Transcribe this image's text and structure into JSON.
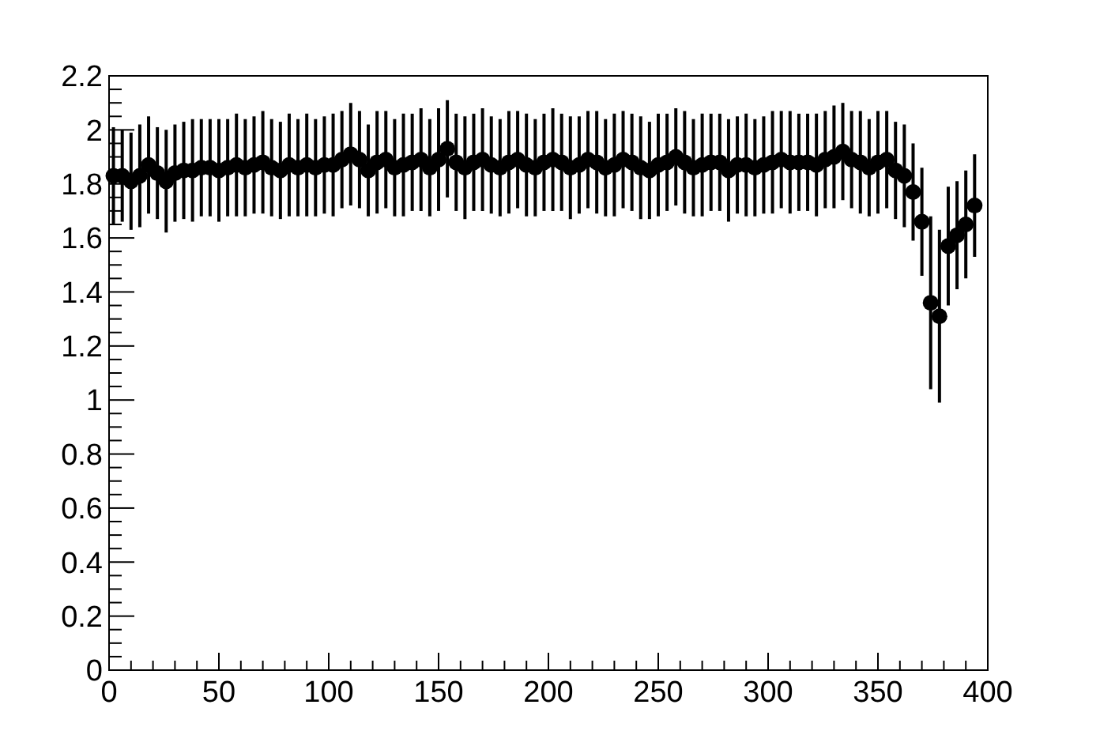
{
  "chart_data": {
    "type": "scatter",
    "marker": "circle",
    "grid": false,
    "xlim": [
      0,
      400
    ],
    "ylim": [
      0,
      2.2
    ],
    "xticks": [
      0,
      {
        "value": 10,
        "label": null
      },
      {
        "value": 20,
        "label": null
      },
      {
        "value": 30,
        "label": null
      },
      {
        "value": 40,
        "label": null
      },
      50,
      {
        "value": 60,
        "label": null
      },
      {
        "value": 70,
        "label": null
      },
      {
        "value": 80,
        "label": null
      },
      {
        "value": 90,
        "label": null
      },
      100,
      {
        "value": 110,
        "label": null
      },
      {
        "value": 120,
        "label": null
      },
      {
        "value": 130,
        "label": null
      },
      {
        "value": 140,
        "label": null
      },
      150,
      {
        "value": 160,
        "label": null
      },
      {
        "value": 170,
        "label": null
      },
      {
        "value": 180,
        "label": null
      },
      {
        "value": 190,
        "label": null
      },
      200,
      {
        "value": 210,
        "label": null
      },
      {
        "value": 220,
        "label": null
      },
      {
        "value": 230,
        "label": null
      },
      {
        "value": 240,
        "label": null
      },
      250,
      {
        "value": 260,
        "label": null
      },
      {
        "value": 270,
        "label": null
      },
      {
        "value": 280,
        "label": null
      },
      {
        "value": 290,
        "label": null
      },
      300,
      {
        "value": 310,
        "label": null
      },
      {
        "value": 320,
        "label": null
      },
      {
        "value": 330,
        "label": null
      },
      {
        "value": 340,
        "label": null
      },
      350,
      {
        "value": 360,
        "label": null
      },
      {
        "value": 370,
        "label": null
      },
      {
        "value": 380,
        "label": null
      },
      {
        "value": 390,
        "label": null
      },
      400
    ],
    "yticks": [
      0,
      {
        "value": 0.05,
        "label": null
      },
      {
        "value": 0.1,
        "label": null
      },
      {
        "value": 0.15,
        "label": null
      },
      0.2,
      {
        "value": 0.25,
        "label": null
      },
      {
        "value": 0.3,
        "label": null
      },
      {
        "value": 0.35,
        "label": null
      },
      0.4,
      {
        "value": 0.45,
        "label": null
      },
      {
        "value": 0.5,
        "label": null
      },
      {
        "value": 0.55,
        "label": null
      },
      0.6,
      {
        "value": 0.65,
        "label": null
      },
      {
        "value": 0.7,
        "label": null
      },
      {
        "value": 0.75,
        "label": null
      },
      0.8,
      {
        "value": 0.85,
        "label": null
      },
      {
        "value": 0.9,
        "label": null
      },
      {
        "value": 0.95,
        "label": null
      },
      1,
      {
        "value": 1.05,
        "label": null
      },
      {
        "value": 1.1,
        "label": null
      },
      {
        "value": 1.15,
        "label": null
      },
      1.2,
      {
        "value": 1.25,
        "label": null
      },
      {
        "value": 1.3,
        "label": null
      },
      {
        "value": 1.35,
        "label": null
      },
      1.4,
      {
        "value": 1.45,
        "label": null
      },
      {
        "value": 1.5,
        "label": null
      },
      {
        "value": 1.55,
        "label": null
      },
      1.6,
      {
        "value": 1.65,
        "label": null
      },
      {
        "value": 1.7,
        "label": null
      },
      {
        "value": 1.75,
        "label": null
      },
      1.8,
      {
        "value": 1.85,
        "label": null
      },
      {
        "value": 1.9,
        "label": null
      },
      {
        "value": 1.95,
        "label": null
      },
      2,
      {
        "value": 2.05,
        "label": null
      },
      {
        "value": 2.1,
        "label": null
      },
      {
        "value": 2.15,
        "label": null
      },
      2.2
    ],
    "x": [
      2,
      6,
      10,
      14,
      18,
      22,
      26,
      30,
      34,
      38,
      42,
      46,
      50,
      54,
      58,
      62,
      66,
      70,
      74,
      78,
      82,
      86,
      90,
      94,
      98,
      102,
      106,
      110,
      114,
      118,
      122,
      126,
      130,
      134,
      138,
      142,
      146,
      150,
      154,
      158,
      162,
      166,
      170,
      174,
      178,
      182,
      186,
      190,
      194,
      198,
      202,
      206,
      210,
      214,
      218,
      222,
      226,
      230,
      234,
      238,
      242,
      246,
      250,
      254,
      258,
      262,
      266,
      270,
      274,
      278,
      282,
      286,
      290,
      294,
      298,
      302,
      306,
      310,
      314,
      318,
      322,
      326,
      330,
      334,
      338,
      342,
      346,
      350,
      354,
      358,
      362,
      366,
      370,
      374,
      378,
      382,
      386,
      390,
      394
    ],
    "series": [
      {
        "color": "#000000",
        "values": [
          1.83,
          1.83,
          1.81,
          1.83,
          1.87,
          1.84,
          1.81,
          1.84,
          1.85,
          1.85,
          1.86,
          1.86,
          1.85,
          1.86,
          1.87,
          1.86,
          1.87,
          1.88,
          1.86,
          1.85,
          1.87,
          1.86,
          1.87,
          1.86,
          1.87,
          1.87,
          1.89,
          1.91,
          1.89,
          1.85,
          1.88,
          1.89,
          1.86,
          1.87,
          1.88,
          1.89,
          1.86,
          1.89,
          1.93,
          1.88,
          1.86,
          1.88,
          1.89,
          1.87,
          1.86,
          1.88,
          1.89,
          1.87,
          1.86,
          1.88,
          1.89,
          1.88,
          1.86,
          1.87,
          1.89,
          1.88,
          1.86,
          1.87,
          1.89,
          1.88,
          1.86,
          1.85,
          1.87,
          1.88,
          1.9,
          1.88,
          1.86,
          1.87,
          1.88,
          1.88,
          1.85,
          1.87,
          1.87,
          1.86,
          1.87,
          1.88,
          1.89,
          1.88,
          1.88,
          1.88,
          1.87,
          1.89,
          1.9,
          1.92,
          1.89,
          1.88,
          1.86,
          1.88,
          1.89,
          1.85,
          1.83,
          1.77,
          1.66,
          1.36,
          1.31,
          1.57,
          1.61,
          1.65,
          1.72
        ],
        "errors": [
          0.18,
          0.17,
          0.18,
          0.19,
          0.18,
          0.17,
          0.19,
          0.18,
          0.18,
          0.19,
          0.18,
          0.18,
          0.19,
          0.18,
          0.19,
          0.18,
          0.18,
          0.19,
          0.18,
          0.18,
          0.19,
          0.18,
          0.19,
          0.18,
          0.18,
          0.19,
          0.18,
          0.19,
          0.18,
          0.17,
          0.19,
          0.18,
          0.18,
          0.19,
          0.18,
          0.19,
          0.18,
          0.19,
          0.18,
          0.18,
          0.19,
          0.18,
          0.19,
          0.18,
          0.18,
          0.19,
          0.18,
          0.19,
          0.18,
          0.18,
          0.19,
          0.18,
          0.19,
          0.18,
          0.18,
          0.19,
          0.18,
          0.19,
          0.18,
          0.18,
          0.19,
          0.18,
          0.19,
          0.18,
          0.18,
          0.19,
          0.18,
          0.19,
          0.18,
          0.18,
          0.19,
          0.18,
          0.19,
          0.18,
          0.18,
          0.19,
          0.18,
          0.19,
          0.18,
          0.18,
          0.19,
          0.18,
          0.19,
          0.18,
          0.18,
          0.19,
          0.18,
          0.19,
          0.18,
          0.18,
          0.19,
          0.18,
          0.2,
          0.32,
          0.32,
          0.22,
          0.2,
          0.2,
          0.19
        ]
      }
    ]
  }
}
